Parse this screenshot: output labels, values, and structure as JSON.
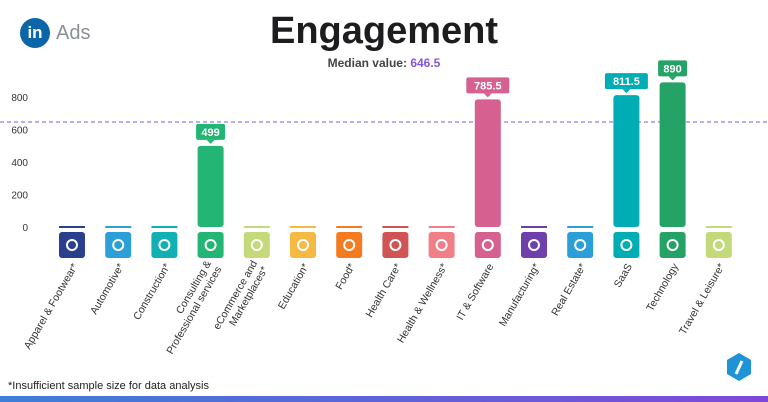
{
  "brand": {
    "logo_letters": "in",
    "product": "Ads"
  },
  "footnote": "*Insufficient sample size for data analysis",
  "chart_data": {
    "type": "bar",
    "title": "Engagement",
    "subtitle_label": "Median value:",
    "median": 646.5,
    "median_text": "646.5",
    "median_color": "#8255e0",
    "ylim": [
      0,
      900
    ],
    "yticks": [
      0,
      200,
      400,
      600,
      800
    ],
    "grid": false,
    "categories": [
      "Apparel & Footwear*",
      "Automotive*",
      "Construction*",
      "Consulting & Professional services",
      "eCommerce and Marketplaces*",
      "Education*",
      "Food*",
      "Health Care*",
      "Health & Wellness*",
      "IT & Software",
      "Manufacturing*",
      "Real Estate*",
      "SaaS",
      "Technology",
      "Travel & Leisure*"
    ],
    "values": [
      null,
      null,
      null,
      499,
      null,
      null,
      null,
      null,
      null,
      785.5,
      null,
      null,
      811.5,
      890,
      null
    ],
    "data_labels": [
      "",
      "",
      "",
      "499",
      "",
      "",
      "",
      "",
      "",
      "785.5",
      "",
      "",
      "811.5",
      "890",
      ""
    ],
    "colors": [
      "#2b3f8f",
      "#2a9fd8",
      "#11b0b5",
      "#22b573",
      "#c3d97a",
      "#f6b941",
      "#f47b20",
      "#d05454",
      "#f07f87",
      "#d6608f",
      "#6f3fab",
      "#2a9fd8",
      "#00adb5",
      "#25a266",
      "#c3d97a"
    ],
    "icons": [
      "tshirt-icon",
      "car-icon",
      "hardhat-icon",
      "phone-chat-icon",
      "cart-icon",
      "graduation-cap-icon",
      "apple-icon",
      "heart-pulse-icon",
      "lotus-icon",
      "monitor-icon",
      "factory-icon",
      "key-house-icon",
      "cloud-tree-icon",
      "touch-network-icon",
      "suitcase-icon"
    ]
  }
}
